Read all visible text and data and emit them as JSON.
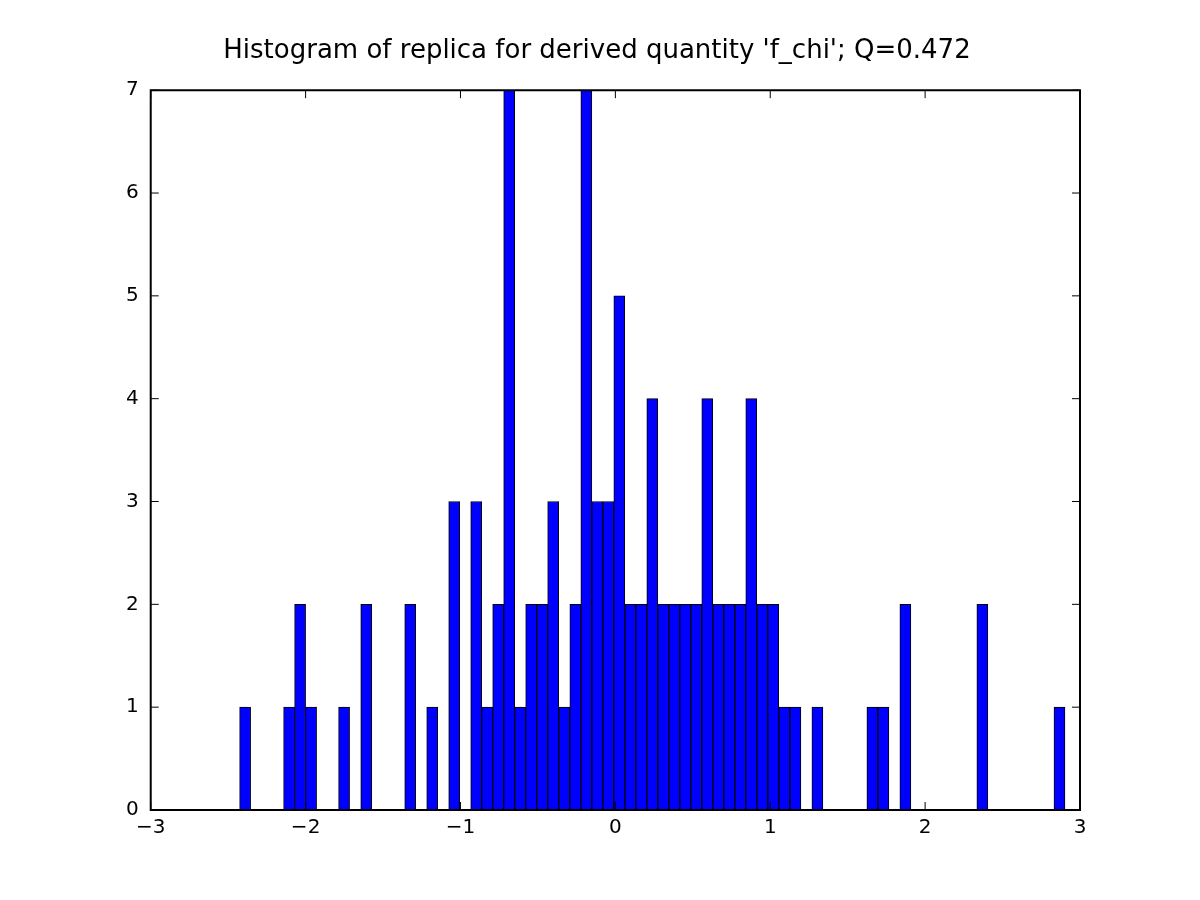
{
  "chart_data": {
    "type": "histogram",
    "title": "Histogram of replica for derived quantity 'f_chi'; Q=0.472",
    "bins": [
      -2.426,
      -2.355,
      -2.284,
      -2.213,
      -2.142,
      -2.071,
      -2.0,
      -1.929,
      -1.858,
      -1.787,
      -1.716,
      -1.644,
      -1.573,
      -1.502,
      -1.431,
      -1.36,
      -1.289,
      -1.218,
      -1.147,
      -1.076,
      -1.005,
      -0.934,
      -0.863,
      -0.792,
      -0.721,
      -0.65,
      -0.579,
      -0.508,
      -0.437,
      -0.366,
      -0.294,
      -0.223,
      -0.152,
      -0.081,
      -0.01,
      0.061,
      0.132,
      0.203,
      0.274,
      0.345,
      0.416,
      0.487,
      0.558,
      0.629,
      0.7,
      0.771,
      0.842,
      0.913,
      0.984,
      1.055,
      1.127,
      1.198,
      1.269,
      1.34,
      1.411,
      1.482,
      1.553,
      1.624,
      1.695,
      1.766,
      1.837,
      1.908,
      1.979,
      2.05,
      2.121,
      2.192,
      2.263,
      2.334,
      2.405,
      2.477,
      2.548,
      2.619,
      2.69,
      2.761,
      2.832,
      2.903
    ],
    "values": [
      1,
      0,
      0,
      0,
      1,
      2,
      1,
      0,
      0,
      1,
      0,
      2,
      0,
      0,
      0,
      2,
      0,
      1,
      0,
      3,
      0,
      3,
      1,
      2,
      7,
      1,
      2,
      2,
      3,
      1,
      2,
      7,
      3,
      3,
      5,
      2,
      2,
      4,
      2,
      2,
      2,
      2,
      4,
      2,
      2,
      2,
      4,
      2,
      2,
      1,
      1,
      0,
      1,
      0,
      0,
      0,
      0,
      1,
      1,
      0,
      2,
      0,
      0,
      0,
      0,
      0,
      0,
      2,
      0,
      0,
      0,
      0,
      0,
      0,
      1
    ],
    "color": "#0000ff",
    "xlim": [
      -3,
      3
    ],
    "xticks": [
      -3,
      -2,
      -1,
      0,
      1,
      2,
      3
    ],
    "ylim": [
      0,
      7
    ],
    "yticks": [
      0,
      1,
      2,
      3,
      4,
      5,
      6,
      7
    ],
    "grid": false,
    "legend": false
  }
}
